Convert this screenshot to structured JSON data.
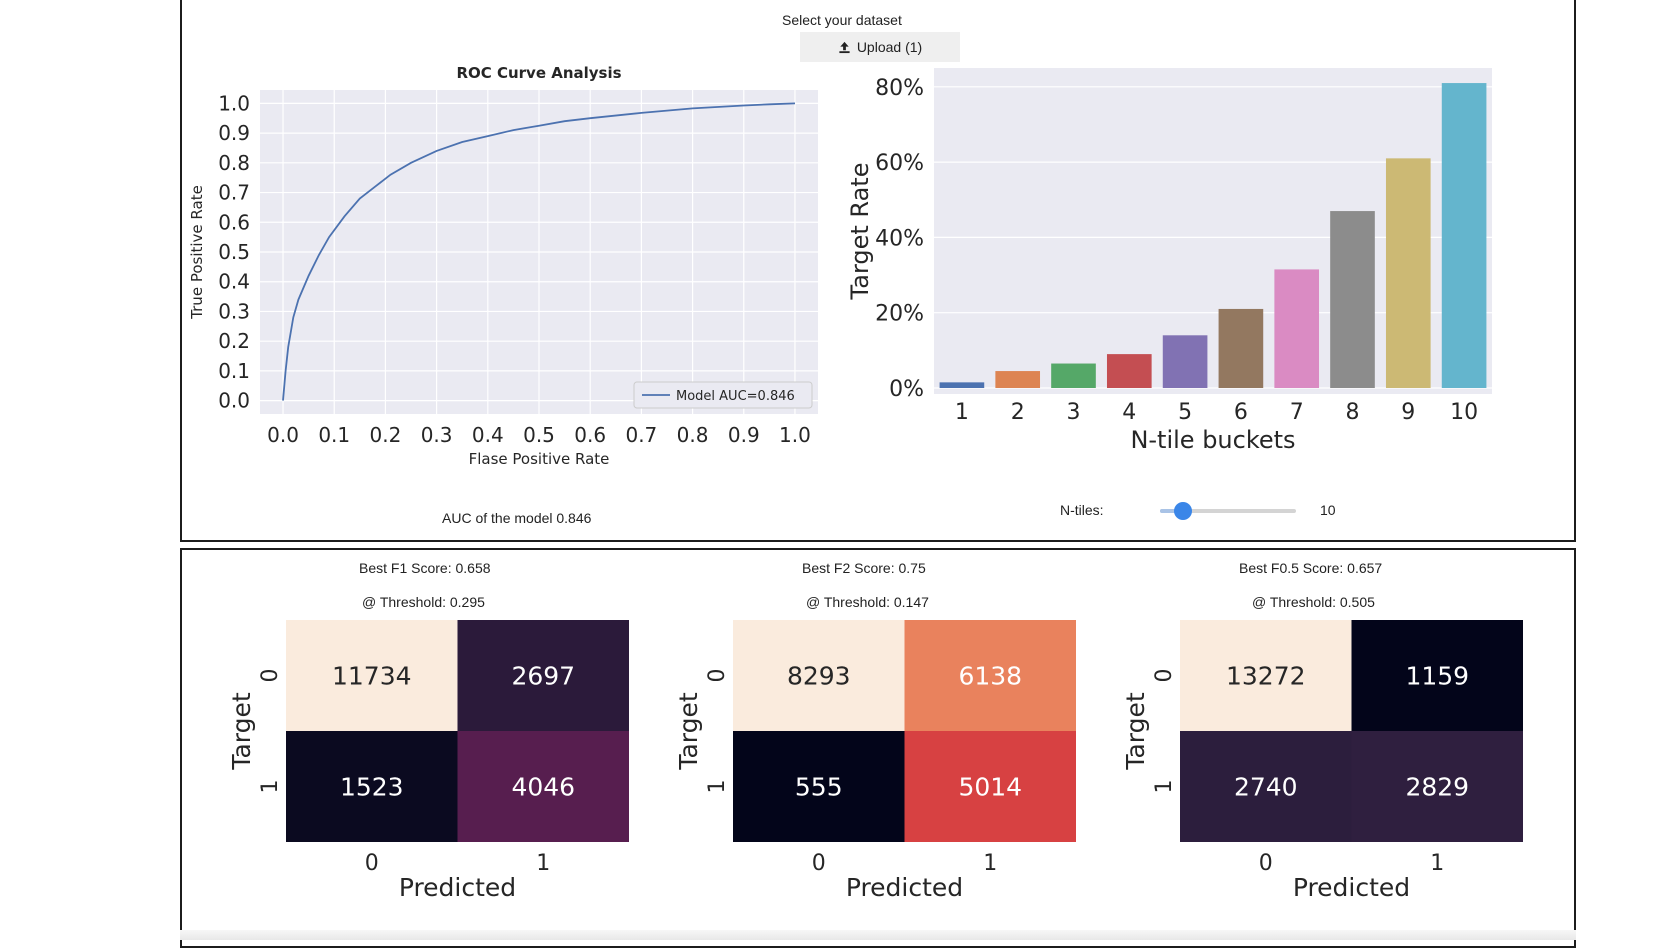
{
  "header": {
    "dataset_label": "Select your dataset",
    "upload_label": "Upload (1)",
    "upload_icon": "upload-icon"
  },
  "roc": {
    "auc_text": "AUC of the model 0.846"
  },
  "ntiles": {
    "label": "N-tiles:",
    "value": "10",
    "slider_min": 2,
    "slider_max": 50,
    "slider_value": 10
  },
  "scores": [
    {
      "best": "Best F1 Score: 0.658",
      "threshold": "@ Threshold: 0.295"
    },
    {
      "best": "Best F2 Score: 0.75",
      "threshold": "@ Threshold: 0.147"
    },
    {
      "best": "Best F0.5 Score: 0.657",
      "threshold": "@ Threshold: 0.505"
    }
  ],
  "chart_data": [
    {
      "type": "line",
      "title": "ROC Curve Analysis",
      "xlabel": "Flase Positive Rate",
      "ylabel": "True Positive Rate",
      "xlim": [
        0,
        1
      ],
      "ylim": [
        0,
        1
      ],
      "xticks": [
        "0.0",
        "0.1",
        "0.2",
        "0.3",
        "0.4",
        "0.5",
        "0.6",
        "0.7",
        "0.8",
        "0.9",
        "1.0"
      ],
      "yticks": [
        "0.0",
        "0.1",
        "0.2",
        "0.3",
        "0.4",
        "0.5",
        "0.6",
        "0.7",
        "0.8",
        "0.9",
        "1.0"
      ],
      "grid": true,
      "legend": "bottom-right",
      "series": [
        {
          "name": "Model AUC=0.846",
          "color": "#4c72b0",
          "x": [
            0.0,
            0.005,
            0.01,
            0.02,
            0.03,
            0.05,
            0.07,
            0.09,
            0.12,
            0.15,
            0.18,
            0.21,
            0.25,
            0.3,
            0.35,
            0.4,
            0.45,
            0.5,
            0.55,
            0.6,
            0.7,
            0.8,
            0.9,
            0.95,
            1.0
          ],
          "y": [
            0.0,
            0.1,
            0.18,
            0.28,
            0.34,
            0.42,
            0.49,
            0.55,
            0.62,
            0.68,
            0.72,
            0.76,
            0.8,
            0.84,
            0.87,
            0.89,
            0.91,
            0.925,
            0.94,
            0.95,
            0.968,
            0.983,
            0.993,
            0.997,
            1.0
          ]
        }
      ]
    },
    {
      "type": "bar",
      "xlabel": "N-tile buckets",
      "ylabel": "Target Rate",
      "categories": [
        "1",
        "2",
        "3",
        "4",
        "5",
        "6",
        "7",
        "8",
        "9",
        "10"
      ],
      "values": [
        1.5,
        4.5,
        6.5,
        9,
        14,
        21,
        31.5,
        47,
        61,
        81
      ],
      "colors": [
        "#4c72b0",
        "#dd8452",
        "#55a868",
        "#c44e52",
        "#8172b3",
        "#937860",
        "#da8bc3",
        "#8c8c8c",
        "#ccb974",
        "#64b5cd"
      ],
      "ylim": [
        0,
        85
      ],
      "yticks": [
        "0%",
        "20%",
        "40%",
        "60%",
        "80%"
      ],
      "grid": true
    },
    {
      "type": "heatmap",
      "xlabel": "Predicted",
      "ylabel": "Target",
      "row_labels": [
        "0",
        "1"
      ],
      "col_labels": [
        "0",
        "1"
      ],
      "values": [
        [
          11734,
          2697
        ],
        [
          1523,
          4046
        ]
      ],
      "colors": [
        [
          "#faebdd",
          "#2b1a3a"
        ],
        [
          "#0b0a20",
          "#571e4f"
        ]
      ],
      "text_colors": [
        [
          "#262626",
          "#ffffff"
        ],
        [
          "#ffffff",
          "#ffffff"
        ]
      ]
    },
    {
      "type": "heatmap",
      "xlabel": "Predicted",
      "ylabel": "Target",
      "row_labels": [
        "0",
        "1"
      ],
      "col_labels": [
        "0",
        "1"
      ],
      "values": [
        [
          8293,
          6138
        ],
        [
          555,
          5014
        ]
      ],
      "colors": [
        [
          "#faebdd",
          "#e9825d"
        ],
        [
          "#03051a",
          "#d74142"
        ]
      ],
      "text_colors": [
        [
          "#262626",
          "#ffffff"
        ],
        [
          "#ffffff",
          "#ffffff"
        ]
      ]
    },
    {
      "type": "heatmap",
      "xlabel": "Predicted",
      "ylabel": "Target",
      "row_labels": [
        "0",
        "1"
      ],
      "col_labels": [
        "0",
        "1"
      ],
      "values": [
        [
          13272,
          1159
        ],
        [
          2740,
          2829
        ]
      ],
      "colors": [
        [
          "#faebdd",
          "#03051a"
        ],
        [
          "#2c1e3d",
          "#2f1f3f"
        ]
      ],
      "text_colors": [
        [
          "#262626",
          "#ffffff"
        ],
        [
          "#ffffff",
          "#ffffff"
        ]
      ]
    }
  ]
}
